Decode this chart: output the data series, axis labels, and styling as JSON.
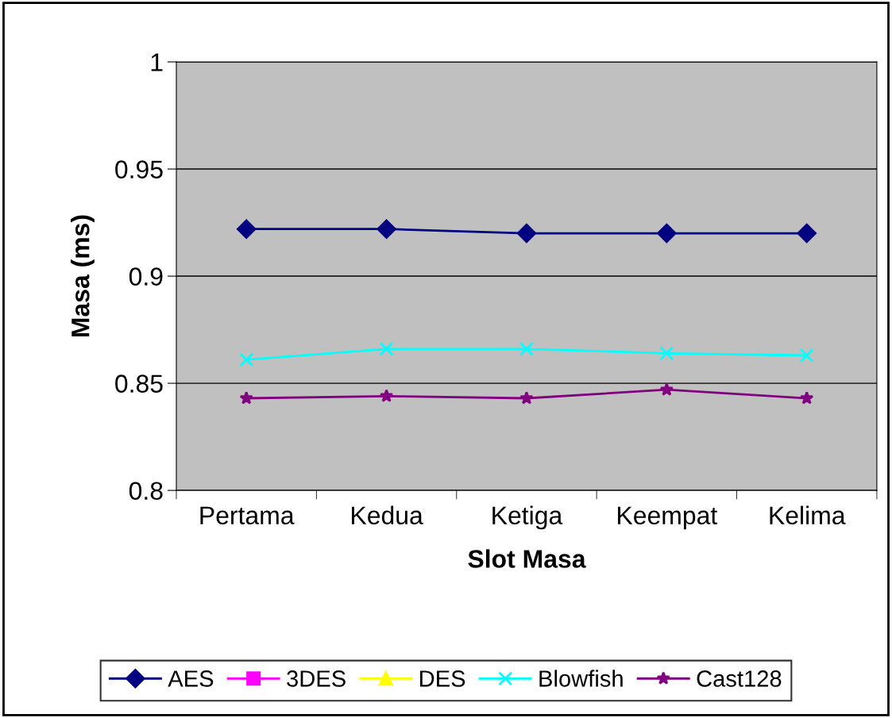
{
  "chart_data": {
    "type": "line",
    "xlabel": "Slot Masa",
    "ylabel": "Masa (ms)",
    "categories": [
      "Pertama",
      "Kedua",
      "Ketiga",
      "Keempat",
      "Kelima"
    ],
    "series": [
      {
        "name": "AES",
        "color": "#000080",
        "marker": "diamond",
        "values": [
          0.922,
          0.922,
          0.92,
          0.92,
          0.92
        ]
      },
      {
        "name": "3DES",
        "color": "#ff00ff",
        "marker": "square",
        "values": [
          null,
          null,
          null,
          null,
          null
        ]
      },
      {
        "name": "DES",
        "color": "#ffff00",
        "marker": "triangle",
        "values": [
          null,
          null,
          null,
          null,
          null
        ]
      },
      {
        "name": "Blowfish",
        "color": "#00ffff",
        "marker": "cross",
        "values": [
          0.861,
          0.866,
          0.866,
          0.864,
          0.863
        ]
      },
      {
        "name": "Cast128",
        "color": "#800080",
        "marker": "star",
        "values": [
          0.843,
          0.844,
          0.843,
          0.847,
          0.843
        ]
      }
    ],
    "ylim": [
      0.8,
      1
    ],
    "yticks": [
      0.8,
      0.85,
      0.9,
      0.95,
      1
    ],
    "grid": "y",
    "legend": "bottom",
    "line_style": "solid"
  }
}
